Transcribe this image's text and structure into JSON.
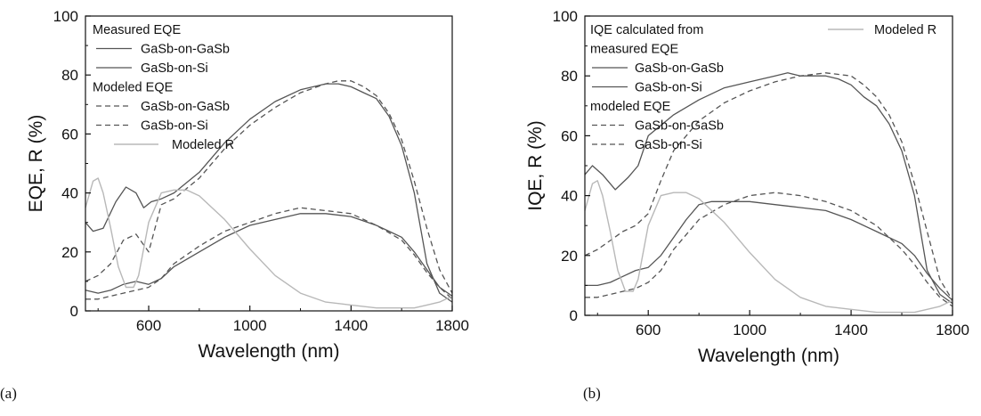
{
  "panels": [
    {
      "label": "(a)",
      "legend": {
        "group1": "Measured EQE",
        "group1b": "",
        "group2": "Modeled EQE"
      },
      "chart_data": {
        "type": "line",
        "xlabel": "Wavelength (nm)",
        "ylabel": "EQE, R (%)",
        "xlim": [
          350,
          1800
        ],
        "ylim": [
          0,
          100
        ],
        "xticks": [
          600,
          1000,
          1400,
          1800
        ],
        "yticks": [
          0,
          20,
          40,
          60,
          80,
          100
        ],
        "colors": {
          "dark": "#555555",
          "light": "#b8b8b8"
        },
        "series": [
          {
            "name": "GaSb-on-GaSb",
            "group": "measured",
            "style": "solid",
            "color": "dark",
            "x": [
              350,
              380,
              420,
              470,
              510,
              550,
              580,
              610,
              650,
              700,
              800,
              900,
              1000,
              1100,
              1200,
              1300,
              1350,
              1400,
              1450,
              1500,
              1550,
              1600,
              1650,
              1700,
              1750,
              1800
            ],
            "y": [
              30,
              27,
              28,
              37,
              42,
              40,
              35,
              37,
              38,
              40,
              47,
              57,
              65,
              71,
              75,
              77,
              77,
              76,
              74,
              72,
              66,
              56,
              40,
              16,
              6,
              3
            ]
          },
          {
            "name": "GaSb-on-Si",
            "group": "measured",
            "style": "solid",
            "color": "dark",
            "x": [
              350,
              400,
              450,
              500,
              550,
              600,
              650,
              700,
              800,
              900,
              1000,
              1100,
              1200,
              1250,
              1300,
              1400,
              1500,
              1550,
              1600,
              1650,
              1700,
              1750,
              1800
            ],
            "y": [
              7,
              6,
              7,
              9,
              10,
              9,
              11,
              15,
              20,
              25,
              29,
              31,
              33,
              33,
              33,
              32,
              29,
              27,
              25,
              20,
              14,
              8,
              5
            ]
          },
          {
            "name": "GaSb-on-GaSb",
            "group": "modeled",
            "style": "dashed",
            "color": "dark",
            "x": [
              350,
              400,
              450,
              500,
              550,
              600,
              650,
              700,
              800,
              900,
              1000,
              1100,
              1200,
              1300,
              1350,
              1400,
              1450,
              1500,
              1550,
              1600,
              1650,
              1700,
              1750,
              1800
            ],
            "y": [
              10,
              12,
              16,
              24,
              26,
              20,
              36,
              38,
              45,
              55,
              63,
              69,
              74,
              77,
              78,
              78,
              76,
              73,
              67,
              58,
              44,
              28,
              14,
              6
            ]
          },
          {
            "name": "GaSb-on-Si",
            "group": "modeled",
            "style": "dashed",
            "color": "dark",
            "x": [
              350,
              400,
              450,
              500,
              550,
              600,
              650,
              700,
              800,
              900,
              1000,
              1100,
              1200,
              1300,
              1400,
              1500,
              1600,
              1650,
              1700,
              1750,
              1800
            ],
            "y": [
              4,
              4,
              5,
              6,
              7,
              8,
              11,
              16,
              22,
              27,
              30,
              33,
              35,
              34,
              33,
              29,
              24,
              19,
              13,
              8,
              4
            ]
          },
          {
            "name": "Modeled R",
            "group": "reflectance",
            "style": "solid",
            "color": "light",
            "x": [
              350,
              380,
              400,
              420,
              450,
              480,
              510,
              540,
              560,
              600,
              650,
              700,
              750,
              800,
              900,
              1000,
              1100,
              1200,
              1300,
              1400,
              1500,
              1600,
              1650,
              1700,
              1750,
              1800
            ],
            "y": [
              35,
              44,
              45,
              40,
              28,
              15,
              8,
              8,
              12,
              30,
              40,
              41,
              41,
              39,
              31,
              21,
              12,
              6,
              3,
              2,
              1,
              1,
              1,
              2,
              3,
              5
            ]
          }
        ]
      }
    },
    {
      "label": "(b)",
      "legend": {
        "group1": "IQE calculated from",
        "group1b": "measured EQE",
        "group2": "modeled EQE"
      },
      "chart_data": {
        "type": "line",
        "xlabel": "Wavelength (nm)",
        "ylabel": "IQE, R (%)",
        "xlim": [
          350,
          1800
        ],
        "ylim": [
          0,
          100
        ],
        "xticks": [
          600,
          1000,
          1400,
          1800
        ],
        "yticks": [
          0,
          20,
          40,
          60,
          80,
          100
        ],
        "colors": {
          "dark": "#555555",
          "light": "#b8b8b8"
        },
        "series": [
          {
            "name": "GaSb-on-GaSb",
            "group": "measured",
            "style": "solid",
            "color": "dark",
            "x": [
              350,
              380,
              420,
              470,
              520,
              560,
              600,
              700,
              800,
              900,
              1000,
              1100,
              1150,
              1200,
              1300,
              1350,
              1400,
              1450,
              1500,
              1550,
              1600,
              1650,
              1700,
              1750,
              1800
            ],
            "y": [
              47,
              50,
              47,
              42,
              46,
              50,
              60,
              67,
              72,
              76,
              78,
              80,
              81,
              80,
              80,
              79,
              77,
              73,
              70,
              64,
              55,
              40,
              15,
              7,
              4
            ]
          },
          {
            "name": "GaSb-on-Si",
            "group": "measured",
            "style": "solid",
            "color": "dark",
            "x": [
              350,
              400,
              450,
              500,
              550,
              600,
              650,
              700,
              750,
              800,
              850,
              900,
              1000,
              1100,
              1200,
              1300,
              1400,
              1500,
              1600,
              1650,
              1700,
              1750,
              1800
            ],
            "y": [
              10,
              10,
              11,
              13,
              15,
              16,
              20,
              26,
              32,
              37,
              38,
              38,
              38,
              37,
              36,
              35,
              32,
              28,
              24,
              20,
              14,
              9,
              5
            ]
          },
          {
            "name": "GaSb-on-GaSb",
            "group": "modeled",
            "style": "dashed",
            "color": "dark",
            "x": [
              350,
              400,
              450,
              500,
              550,
              600,
              650,
              700,
              800,
              900,
              1000,
              1100,
              1200,
              1300,
              1400,
              1450,
              1500,
              1550,
              1600,
              1650,
              1700,
              1750,
              1800
            ],
            "y": [
              20,
              22,
              25,
              28,
              30,
              34,
              45,
              55,
              65,
              71,
              75,
              78,
              80,
              81,
              80,
              77,
              73,
              67,
              58,
              44,
              28,
              12,
              5
            ]
          },
          {
            "name": "GaSb-on-Si",
            "group": "modeled",
            "style": "dashed",
            "color": "dark",
            "x": [
              350,
              400,
              450,
              500,
              550,
              600,
              650,
              700,
              800,
              900,
              1000,
              1100,
              1200,
              1300,
              1400,
              1500,
              1600,
              1650,
              1700,
              1750,
              1800
            ],
            "y": [
              6,
              6,
              7,
              8,
              9,
              11,
              15,
              22,
              32,
              37,
              40,
              41,
              40,
              38,
              35,
              30,
              22,
              17,
              11,
              6,
              3
            ]
          },
          {
            "name": "Modeled R",
            "group": "reflectance",
            "style": "solid",
            "color": "light",
            "x": [
              350,
              380,
              400,
              420,
              450,
              480,
              510,
              540,
              560,
              600,
              650,
              700,
              750,
              800,
              900,
              1000,
              1100,
              1200,
              1300,
              1400,
              1500,
              1600,
              1650,
              1700,
              1750,
              1800
            ],
            "y": [
              35,
              44,
              45,
              40,
              28,
              15,
              8,
              8,
              12,
              30,
              40,
              41,
              41,
              39,
              31,
              21,
              12,
              6,
              3,
              2,
              1,
              1,
              1,
              2,
              3,
              5
            ]
          }
        ]
      }
    }
  ]
}
